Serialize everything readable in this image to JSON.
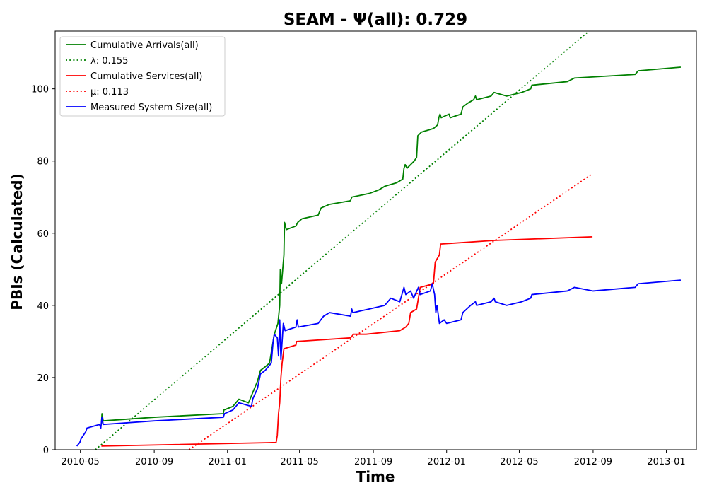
{
  "chart_data": {
    "type": "line",
    "title": "SEAM -  Ψ(all): 0.729",
    "xlabel": "Time",
    "ylabel": "PBIs (Calculated)",
    "x_ticks": [
      "2010-05",
      "2010-09",
      "2011-01",
      "2011-05",
      "2011-09",
      "2012-01",
      "2012-05",
      "2012-09",
      "2013-01"
    ],
    "y_ticks": [
      0,
      20,
      40,
      60,
      80,
      100
    ],
    "ylim": [
      0,
      116
    ],
    "xlim": [
      "2010-03-20",
      "2013-02-20"
    ],
    "legend_position": "upper-left",
    "grid": false,
    "series": [
      {
        "name": "Cumulative Arrivals(all)",
        "style": "solid",
        "color": "#008000",
        "points": [
          [
            "2010-06-05",
            7
          ],
          [
            "2010-06-06",
            10
          ],
          [
            "2010-06-08",
            8
          ],
          [
            "2010-09-01",
            9
          ],
          [
            "2010-12-25",
            10
          ],
          [
            "2010-12-26",
            11
          ],
          [
            "2011-01-10",
            12
          ],
          [
            "2011-01-20",
            14
          ],
          [
            "2011-02-05",
            13
          ],
          [
            "2011-02-10",
            15
          ],
          [
            "2011-02-20",
            19
          ],
          [
            "2011-02-25",
            22
          ],
          [
            "2011-03-05",
            23
          ],
          [
            "2011-03-12",
            24
          ],
          [
            "2011-03-20",
            32
          ],
          [
            "2011-03-26",
            35
          ],
          [
            "2011-03-29",
            40
          ],
          [
            "2011-03-30",
            50
          ],
          [
            "2011-04-01",
            46
          ],
          [
            "2011-04-05",
            54
          ],
          [
            "2011-04-06",
            63
          ],
          [
            "2011-04-09",
            61
          ],
          [
            "2011-04-25",
            62
          ],
          [
            "2011-04-28",
            63
          ],
          [
            "2011-05-05",
            64
          ],
          [
            "2011-06-01",
            65
          ],
          [
            "2011-06-06",
            67
          ],
          [
            "2011-06-20",
            68
          ],
          [
            "2011-07-25",
            69
          ],
          [
            "2011-07-27",
            70
          ],
          [
            "2011-08-25",
            71
          ],
          [
            "2011-09-10",
            72
          ],
          [
            "2011-09-20",
            73
          ],
          [
            "2011-10-10",
            74
          ],
          [
            "2011-10-20",
            75
          ],
          [
            "2011-10-22",
            78
          ],
          [
            "2011-10-24",
            79
          ],
          [
            "2011-10-27",
            78
          ],
          [
            "2011-11-08",
            80
          ],
          [
            "2011-11-12",
            81
          ],
          [
            "2011-11-14",
            87
          ],
          [
            "2011-11-20",
            88
          ],
          [
            "2011-12-10",
            89
          ],
          [
            "2011-12-17",
            90
          ],
          [
            "2011-12-19",
            92
          ],
          [
            "2011-12-21",
            93
          ],
          [
            "2011-12-23",
            92
          ],
          [
            "2012-01-05",
            93
          ],
          [
            "2012-01-07",
            92
          ],
          [
            "2012-01-25",
            93
          ],
          [
            "2012-01-28",
            95
          ],
          [
            "2012-02-05",
            96
          ],
          [
            "2012-02-15",
            97
          ],
          [
            "2012-02-18",
            98
          ],
          [
            "2012-02-20",
            97
          ],
          [
            "2012-03-15",
            98
          ],
          [
            "2012-03-20",
            99
          ],
          [
            "2012-04-10",
            98
          ],
          [
            "2012-05-05",
            99
          ],
          [
            "2012-05-20",
            100
          ],
          [
            "2012-05-22",
            101
          ],
          [
            "2012-07-20",
            102
          ],
          [
            "2012-08-01",
            103
          ],
          [
            "2012-11-10",
            104
          ],
          [
            "2012-11-15",
            105
          ],
          [
            "2013-01-25",
            106
          ]
        ]
      },
      {
        "name": "λ: 0.155",
        "style": "dotted",
        "color": "#008000",
        "points": [
          [
            "2010-05-26",
            0
          ],
          [
            "2012-08-25",
            116
          ]
        ]
      },
      {
        "name": "Cumulative Services(all)",
        "style": "solid",
        "color": "#ff0000",
        "points": [
          [
            "2010-06-05",
            1
          ],
          [
            "2011-03-23",
            2
          ],
          [
            "2011-03-25",
            4
          ],
          [
            "2011-03-27",
            10
          ],
          [
            "2011-03-29",
            13
          ],
          [
            "2011-03-31",
            20
          ],
          [
            "2011-04-02",
            24
          ],
          [
            "2011-04-05",
            28
          ],
          [
            "2011-04-25",
            29
          ],
          [
            "2011-04-26",
            30
          ],
          [
            "2011-07-25",
            31
          ],
          [
            "2011-07-30",
            32
          ],
          [
            "2011-08-20",
            32
          ],
          [
            "2011-10-15",
            33
          ],
          [
            "2011-10-25",
            34
          ],
          [
            "2011-10-30",
            35
          ],
          [
            "2011-11-02",
            38
          ],
          [
            "2011-11-12",
            39
          ],
          [
            "2011-11-15",
            42
          ],
          [
            "2011-11-18",
            45
          ],
          [
            "2011-12-10",
            46
          ],
          [
            "2011-12-13",
            52
          ],
          [
            "2011-12-20",
            54
          ],
          [
            "2011-12-22",
            57
          ],
          [
            "2012-03-20",
            58
          ],
          [
            "2012-08-31",
            59
          ]
        ]
      },
      {
        "name": "μ: 0.113",
        "style": "dotted",
        "color": "#ff0000",
        "points": [
          [
            "2010-10-29",
            0
          ],
          [
            "2012-08-31",
            76.5
          ]
        ]
      },
      {
        "name": "Measured System Size(all)",
        "style": "solid",
        "color": "#0000ff",
        "points": [
          [
            "2010-04-25",
            1
          ],
          [
            "2010-04-30",
            2
          ],
          [
            "2010-05-02",
            3
          ],
          [
            "2010-05-06",
            4
          ],
          [
            "2010-05-10",
            5
          ],
          [
            "2010-05-12",
            6
          ],
          [
            "2010-06-02",
            7
          ],
          [
            "2010-06-04",
            6
          ],
          [
            "2010-06-06",
            9
          ],
          [
            "2010-06-08",
            7
          ],
          [
            "2010-09-01",
            8
          ],
          [
            "2010-12-25",
            9
          ],
          [
            "2010-12-27",
            10
          ],
          [
            "2011-01-10",
            11
          ],
          [
            "2011-01-20",
            13
          ],
          [
            "2011-02-10",
            12
          ],
          [
            "2011-02-12",
            14
          ],
          [
            "2011-02-20",
            17
          ],
          [
            "2011-02-25",
            21
          ],
          [
            "2011-03-05",
            22
          ],
          [
            "2011-03-15",
            24
          ],
          [
            "2011-03-18",
            30
          ],
          [
            "2011-03-20",
            32
          ],
          [
            "2011-03-25",
            31
          ],
          [
            "2011-03-27",
            26
          ],
          [
            "2011-03-29",
            36
          ],
          [
            "2011-03-31",
            25
          ],
          [
            "2011-04-02",
            30
          ],
          [
            "2011-04-04",
            35
          ],
          [
            "2011-04-07",
            33
          ],
          [
            "2011-04-25",
            34
          ],
          [
            "2011-04-27",
            36
          ],
          [
            "2011-04-29",
            34
          ],
          [
            "2011-06-01",
            35
          ],
          [
            "2011-06-10",
            37
          ],
          [
            "2011-06-20",
            38
          ],
          [
            "2011-07-25",
            37
          ],
          [
            "2011-07-27",
            39
          ],
          [
            "2011-07-29",
            38
          ],
          [
            "2011-08-25",
            39
          ],
          [
            "2011-09-20",
            40
          ],
          [
            "2011-09-30",
            42
          ],
          [
            "2011-10-15",
            41
          ],
          [
            "2011-10-22",
            45
          ],
          [
            "2011-10-25",
            43
          ],
          [
            "2011-11-02",
            44
          ],
          [
            "2011-11-07",
            42
          ],
          [
            "2011-11-15",
            45
          ],
          [
            "2011-11-18",
            43
          ],
          [
            "2011-12-05",
            44
          ],
          [
            "2011-12-08",
            46
          ],
          [
            "2011-12-12",
            43
          ],
          [
            "2011-12-14",
            38
          ],
          [
            "2011-12-16",
            40
          ],
          [
            "2011-12-20",
            35
          ],
          [
            "2011-12-28",
            36
          ],
          [
            "2012-01-01",
            35
          ],
          [
            "2012-01-25",
            36
          ],
          [
            "2012-01-28",
            38
          ],
          [
            "2012-02-10",
            40
          ],
          [
            "2012-02-18",
            41
          ],
          [
            "2012-02-20",
            40
          ],
          [
            "2012-03-15",
            41
          ],
          [
            "2012-03-20",
            42
          ],
          [
            "2012-03-22",
            41
          ],
          [
            "2012-04-10",
            40
          ],
          [
            "2012-05-05",
            41
          ],
          [
            "2012-05-20",
            42
          ],
          [
            "2012-05-22",
            43
          ],
          [
            "2012-07-20",
            44
          ],
          [
            "2012-08-01",
            45
          ],
          [
            "2012-09-01",
            44
          ],
          [
            "2012-11-10",
            45
          ],
          [
            "2012-11-15",
            46
          ],
          [
            "2013-01-25",
            47
          ]
        ]
      }
    ]
  }
}
